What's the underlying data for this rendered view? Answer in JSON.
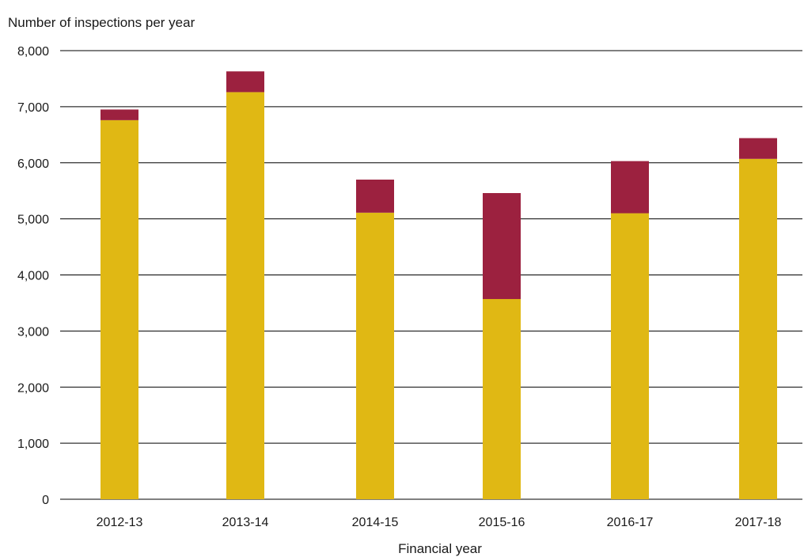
{
  "chart_data": {
    "type": "bar",
    "stacked": true,
    "title": "",
    "ylabel": "Number of inspections per year",
    "xlabel": "Financial year",
    "categories": [
      "2012-13",
      "2013-14",
      "2014-15",
      "2015-16",
      "2016-17",
      "2017-18"
    ],
    "series": [
      {
        "values": [
          6760,
          7260,
          5110,
          3570,
          5100,
          6070
        ],
        "color": "#E0B814"
      },
      {
        "values": [
          190,
          370,
          590,
          1890,
          930,
          370
        ],
        "color": "#9C213F"
      }
    ],
    "ylim": [
      0,
      8000
    ],
    "yticks": [
      0,
      1000,
      2000,
      3000,
      4000,
      5000,
      6000,
      7000,
      8000
    ],
    "ytick_labels": [
      "0",
      "1,000",
      "2,000",
      "3,000",
      "4,000",
      "5,000",
      "6,000",
      "7,000",
      "8,000"
    ],
    "grid": true,
    "legend": "none"
  }
}
